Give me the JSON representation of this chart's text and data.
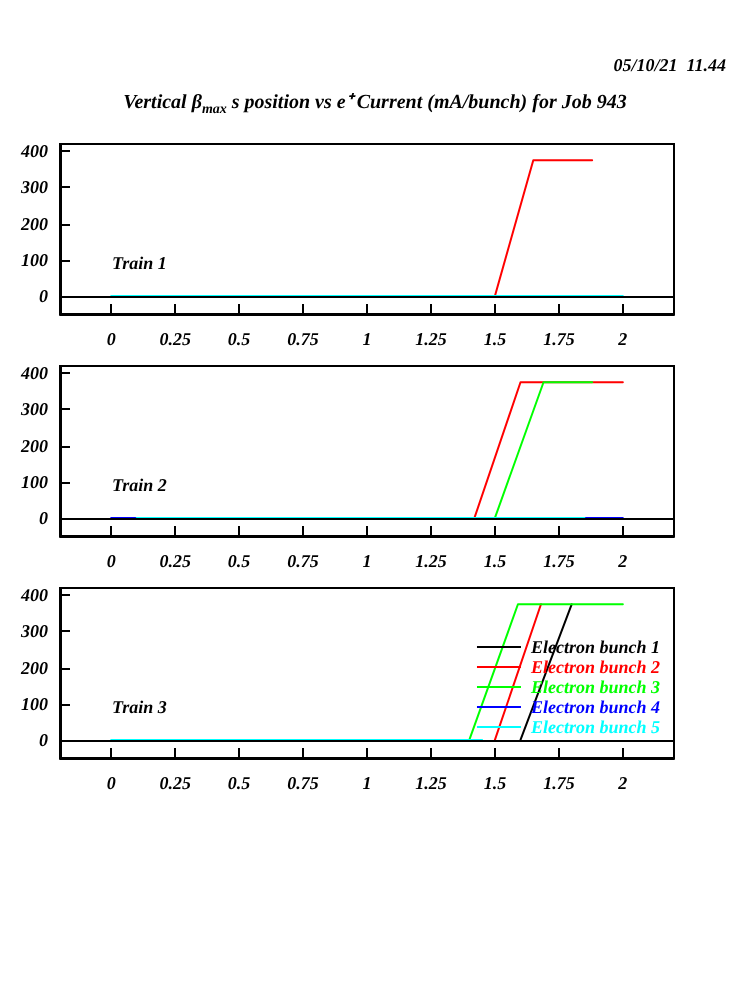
{
  "chart_data": [
    {
      "type": "line",
      "title": "Vertical β$_{max}$ s position vs e⁺ Current (mA/bunch) for Job 943",
      "annotations": [
        "05/10/21  11.44",
        "Train 1"
      ],
      "xlim": [
        -0.2,
        2.2
      ],
      "xticks": [
        0,
        0.25,
        0.5,
        0.75,
        1,
        1.25,
        1.5,
        1.75,
        2
      ],
      "ylim": [
        -50,
        420
      ],
      "yticks": [
        0,
        100,
        200,
        300,
        400
      ],
      "grid": false,
      "legend": false,
      "marker": "none",
      "line_style": "solid",
      "ref_lines": [
        {
          "axis": "y",
          "value": 0,
          "color": "#000000"
        }
      ],
      "series": [
        {
          "color": "#ff0000",
          "x": [
            1.5,
            1.65,
            1.88
          ],
          "values": [
            0,
            375,
            375
          ]
        },
        {
          "color": "#00ffff",
          "x": [
            0,
            2
          ],
          "values": [
            0,
            0
          ]
        }
      ]
    },
    {
      "type": "line",
      "annotations": [
        "Train 2"
      ],
      "xlim": [
        -0.2,
        2.2
      ],
      "xticks": [
        0,
        0.25,
        0.5,
        0.75,
        1,
        1.25,
        1.5,
        1.75,
        2
      ],
      "ylim": [
        -50,
        420
      ],
      "yticks": [
        0,
        100,
        200,
        300,
        400
      ],
      "grid": false,
      "legend": false,
      "marker": "none",
      "line_style": "solid",
      "ref_lines": [
        {
          "axis": "y",
          "value": 0,
          "color": "#000000"
        }
      ],
      "series": [
        {
          "color": "#0000ff",
          "x": [
            0,
            0.1,
            1,
            1.85,
            2
          ],
          "values": [
            0,
            0,
            null,
            0,
            0
          ]
        },
        {
          "color": "#ff0000",
          "x": [
            1.42,
            1.6,
            2
          ],
          "values": [
            0,
            375,
            375
          ]
        },
        {
          "color": "#00ff00",
          "x": [
            1.5,
            1.69,
            1.88
          ],
          "values": [
            0,
            375,
            375
          ]
        },
        {
          "color": "#00ffff",
          "x": [
            0.1,
            1.85
          ],
          "values": [
            0,
            0
          ]
        }
      ]
    },
    {
      "type": "line",
      "annotations": [
        "Train 3"
      ],
      "xlim": [
        -0.2,
        2.2
      ],
      "xticks": [
        0,
        0.25,
        0.5,
        0.75,
        1,
        1.25,
        1.5,
        1.75,
        2
      ],
      "ylim": [
        -50,
        420
      ],
      "yticks": [
        0,
        100,
        200,
        300,
        400
      ],
      "grid": false,
      "legend": "bottom right",
      "marker": "none",
      "line_style": "solid",
      "ref_lines": [
        {
          "axis": "y",
          "value": 0,
          "color": "#000000"
        }
      ],
      "series": [
        {
          "name": "Electron bunch 1",
          "color": "#000000",
          "x": [
            1.6,
            1.8
          ],
          "values": [
            0,
            375
          ]
        },
        {
          "name": "Electron bunch 2",
          "color": "#ff0000",
          "x": [
            1.5,
            1.68
          ],
          "values": [
            0,
            375
          ]
        },
        {
          "name": "Electron bunch 3",
          "color": "#00ff00",
          "x": [
            1.4,
            1.59,
            2
          ],
          "values": [
            0,
            375,
            375
          ]
        },
        {
          "name": "Electron bunch 4",
          "color": "#0000ff"
        },
        {
          "name": "Electron bunch 5",
          "color": "#00ffff",
          "x": [
            0,
            1.45
          ],
          "values": [
            0,
            0
          ]
        }
      ]
    }
  ]
}
